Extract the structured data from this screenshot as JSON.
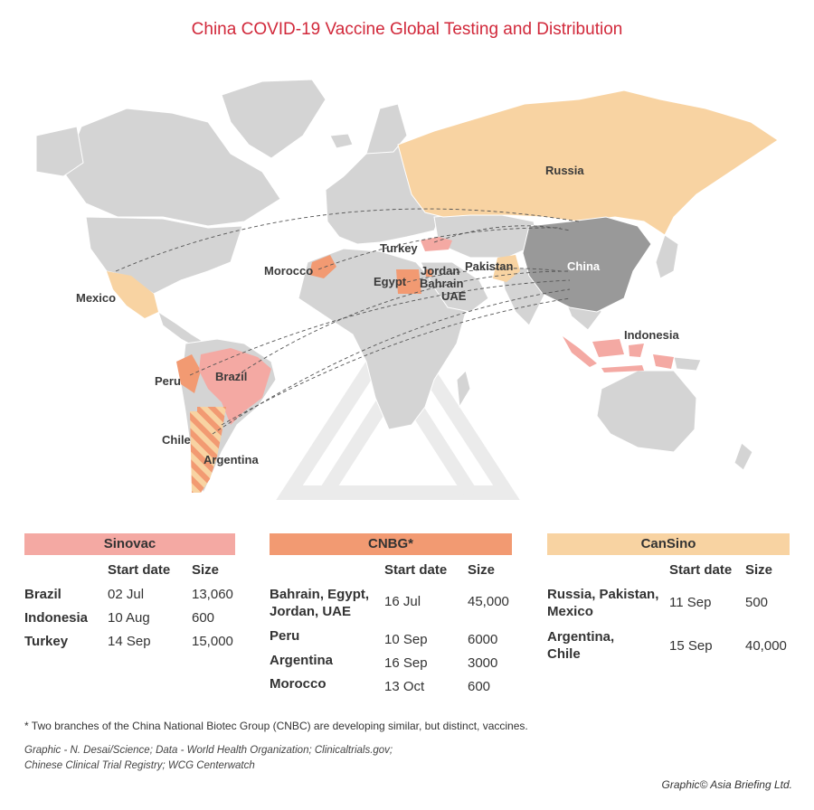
{
  "title": "China COVID-19 Vaccine Global Testing and Distribution",
  "colors": {
    "land": "#d4d4d4",
    "china": "#999999",
    "sinovac": "#f4a9a3",
    "cnbg": "#f29a72",
    "cansino": "#f8d3a2"
  },
  "map_labels": {
    "russia": "Russia",
    "china": "China",
    "turkey": "Turkey",
    "morocco": "Morocco",
    "egypt": "Egypt",
    "jordan": "Jordan",
    "bahrain": "Bahrain",
    "uae": "UAE",
    "pakistan": "Pakistan",
    "mexico": "Mexico",
    "indonesia": "Indonesia",
    "peru": "Peru",
    "brazil": "Brazil",
    "chile": "Chile",
    "argentina": "Argentina"
  },
  "tables": {
    "sinovac": {
      "name": "Sinovac",
      "col_start": "Start date",
      "col_size": "Size",
      "rows": [
        {
          "country": "Brazil",
          "date": "02 Jul",
          "size": "13,060"
        },
        {
          "country": "Indonesia",
          "date": "10 Aug",
          "size": "600"
        },
        {
          "country": "Turkey",
          "date": "14 Sep",
          "size": "15,000"
        }
      ]
    },
    "cnbg": {
      "name": "CNBG*",
      "col_start": "Start date",
      "col_size": "Size",
      "rows": [
        {
          "country": "Bahrain, Egypt,",
          "country2": "Jordan, UAE",
          "date": "16 Jul",
          "size": "45,000"
        },
        {
          "country": "Peru",
          "date": "10 Sep",
          "size": "6000"
        },
        {
          "country": "Argentina",
          "date": "16 Sep",
          "size": "3000"
        },
        {
          "country": "Morocco",
          "date": "13 Oct",
          "size": "600"
        }
      ]
    },
    "cansino": {
      "name": "CanSino",
      "col_start": "Start date",
      "col_size": "Size",
      "rows": [
        {
          "country": "Russia, Pakistan,",
          "country2": "Mexico",
          "date": "11 Sep",
          "size": "500"
        },
        {
          "country": "Argentina,",
          "country2": "Chile",
          "date": "15 Sep",
          "size": "40,000"
        }
      ]
    }
  },
  "footnote": "* Two branches of the China National Biotec Group (CNBC) are developing similar, but distinct, vaccines.",
  "source_line1": "Graphic - N. Desai/Science; Data - World Health Organization; Clinicaltrials.gov;",
  "source_line2": "Chinese Clinical Trial Registry; WCG Centerwatch",
  "credit": "Graphic© Asia Briefing Ltd."
}
